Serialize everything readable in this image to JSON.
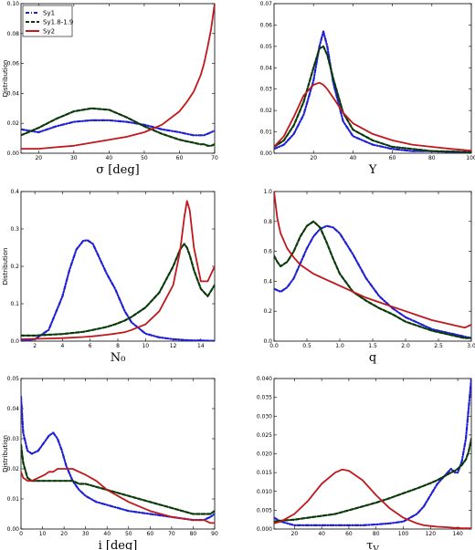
{
  "legend": [
    {
      "name": "Sy1",
      "color": "#1f1fd6",
      "dash": "dashdot"
    },
    {
      "name": "Sy1.8-1.9",
      "color": "#0a3a0a",
      "dash": "dashed"
    },
    {
      "name": "Sy2",
      "color": "#c0181c",
      "dash": "solid"
    }
  ],
  "chart_data": [
    {
      "type": "line",
      "xlabel": "σ [deg]",
      "ylabel": "Distribution",
      "xlim": [
        15,
        70
      ],
      "ylim": [
        0,
        0.1
      ],
      "xticks": [
        "20",
        "30",
        "40",
        "50",
        "60",
        "70"
      ],
      "yticks": [
        "0.00",
        "0.02",
        "0.04",
        "0.06",
        "0.08",
        "0.10"
      ],
      "x": [
        15,
        20,
        25,
        30,
        35,
        40,
        45,
        50,
        55,
        60,
        62,
        64,
        66,
        67,
        68,
        69,
        70
      ],
      "series": [
        {
          "name": "Sy1",
          "values": [
            0.016,
            0.014,
            0.018,
            0.021,
            0.022,
            0.022,
            0.021,
            0.019,
            0.016,
            0.014,
            0.013,
            0.012,
            0.012,
            0.012,
            0.013,
            0.014,
            0.015
          ]
        },
        {
          "name": "Sy1.8-1.9",
          "values": [
            0.012,
            0.017,
            0.023,
            0.028,
            0.03,
            0.029,
            0.024,
            0.018,
            0.013,
            0.009,
            0.008,
            0.007,
            0.006,
            0.006,
            0.005,
            0.005,
            0.006
          ]
        },
        {
          "name": "Sy2",
          "values": [
            0.003,
            0.003,
            0.004,
            0.005,
            0.007,
            0.009,
            0.011,
            0.014,
            0.019,
            0.028,
            0.034,
            0.041,
            0.052,
            0.06,
            0.071,
            0.083,
            0.1
          ]
        }
      ]
    },
    {
      "type": "line",
      "xlabel": "Y",
      "ylabel": "",
      "xlim": [
        0,
        100
      ],
      "ylim": [
        0,
        0.07
      ],
      "xticks": [
        "20",
        "40",
        "60",
        "80",
        "100"
      ],
      "yticks": [
        "0.00",
        "0.01",
        "0.02",
        "0.03",
        "0.04",
        "0.05",
        "0.06",
        "0.07"
      ],
      "x": [
        0,
        5,
        10,
        15,
        20,
        23,
        25,
        27,
        30,
        35,
        40,
        50,
        60,
        70,
        80,
        90,
        100
      ],
      "series": [
        {
          "name": "Sy1",
          "values": [
            0.002,
            0.004,
            0.009,
            0.018,
            0.034,
            0.05,
            0.057,
            0.05,
            0.033,
            0.015,
            0.008,
            0.004,
            0.002,
            0.001,
            0.001,
            0.0005,
            0.0003
          ]
        },
        {
          "name": "Sy1.8-1.9",
          "values": [
            0.003,
            0.006,
            0.013,
            0.024,
            0.04,
            0.049,
            0.05,
            0.046,
            0.035,
            0.019,
            0.011,
            0.006,
            0.003,
            0.002,
            0.001,
            0.0008,
            0.0005
          ]
        },
        {
          "name": "Sy2",
          "values": [
            0.003,
            0.008,
            0.017,
            0.027,
            0.032,
            0.033,
            0.032,
            0.03,
            0.026,
            0.019,
            0.014,
            0.009,
            0.006,
            0.004,
            0.003,
            0.002,
            0.0012
          ]
        }
      ]
    },
    {
      "type": "line",
      "xlabel": "N₀",
      "ylabel": "Distribution",
      "xlim": [
        1,
        15
      ],
      "ylim": [
        0,
        0.4
      ],
      "xticks": [
        "2",
        "4",
        "6",
        "8",
        "10",
        "12",
        "14"
      ],
      "yticks": [
        "0.0",
        "0.1",
        "0.2",
        "0.3",
        "0.4"
      ],
      "x": [
        1,
        2,
        3,
        4,
        4.5,
        5,
        5.5,
        5.8,
        6.2,
        6.7,
        7.2,
        7.8,
        8.5,
        9,
        10,
        11,
        12,
        12.5,
        12.8,
        13,
        13.2,
        13.5,
        14,
        14.5,
        15
      ],
      "series": [
        {
          "name": "Sy1",
          "values": [
            0.001,
            0.005,
            0.03,
            0.12,
            0.19,
            0.245,
            0.268,
            0.27,
            0.26,
            0.22,
            0.18,
            0.14,
            0.08,
            0.05,
            0.02,
            0.01,
            0.005,
            0.004,
            0.003,
            0.003,
            0.002,
            0.002,
            0.002,
            0.001,
            0.001
          ]
        },
        {
          "name": "Sy1.8-1.9",
          "values": [
            0.015,
            0.015,
            0.017,
            0.019,
            0.021,
            0.023,
            0.025,
            0.027,
            0.03,
            0.034,
            0.038,
            0.045,
            0.055,
            0.065,
            0.09,
            0.13,
            0.2,
            0.245,
            0.26,
            0.25,
            0.23,
            0.19,
            0.14,
            0.12,
            0.15
          ]
        },
        {
          "name": "Sy2",
          "values": [
            0.005,
            0.006,
            0.007,
            0.008,
            0.009,
            0.01,
            0.011,
            0.012,
            0.013,
            0.015,
            0.017,
            0.02,
            0.024,
            0.03,
            0.045,
            0.08,
            0.15,
            0.24,
            0.33,
            0.375,
            0.35,
            0.25,
            0.16,
            0.16,
            0.2
          ]
        }
      ]
    },
    {
      "type": "line",
      "xlabel": "q",
      "ylabel": "",
      "xlim": [
        0,
        3
      ],
      "ylim": [
        0,
        1
      ],
      "xticks": [
        "0.0",
        "0.5",
        "1.0",
        "1.5",
        "2.0",
        "2.5",
        "3.0"
      ],
      "yticks": [
        "0.0",
        "0.2",
        "0.4",
        "0.6",
        "0.8",
        "1.0"
      ],
      "x": [
        0,
        0.05,
        0.1,
        0.2,
        0.3,
        0.4,
        0.5,
        0.6,
        0.7,
        0.8,
        0.9,
        1.0,
        1.2,
        1.4,
        1.6,
        1.8,
        2.0,
        2.2,
        2.4,
        2.6,
        2.8,
        2.9,
        3.0
      ],
      "series": [
        {
          "name": "Sy1",
          "values": [
            0.35,
            0.34,
            0.33,
            0.36,
            0.42,
            0.52,
            0.62,
            0.7,
            0.75,
            0.77,
            0.76,
            0.72,
            0.58,
            0.42,
            0.3,
            0.22,
            0.16,
            0.12,
            0.08,
            0.06,
            0.04,
            0.03,
            0.02
          ]
        },
        {
          "name": "Sy1.8-1.9",
          "values": [
            0.57,
            0.53,
            0.5,
            0.53,
            0.6,
            0.7,
            0.77,
            0.8,
            0.76,
            0.66,
            0.55,
            0.45,
            0.33,
            0.27,
            0.22,
            0.18,
            0.13,
            0.1,
            0.07,
            0.05,
            0.03,
            0.02,
            0.02
          ]
        },
        {
          "name": "Sy2",
          "values": [
            1.0,
            0.82,
            0.72,
            0.62,
            0.56,
            0.51,
            0.48,
            0.45,
            0.43,
            0.41,
            0.39,
            0.37,
            0.33,
            0.29,
            0.26,
            0.23,
            0.2,
            0.17,
            0.14,
            0.12,
            0.1,
            0.09,
            0.11
          ]
        }
      ]
    },
    {
      "type": "line",
      "xlabel": "i [deg]",
      "ylabel": "Distribution",
      "xlim": [
        0,
        90
      ],
      "ylim": [
        0,
        0.05
      ],
      "xticks": [
        "0",
        "10",
        "20",
        "30",
        "40",
        "50",
        "60",
        "70",
        "80",
        "90"
      ],
      "yticks": [
        "0.00",
        "0.01",
        "0.02",
        "0.03",
        "0.04",
        "0.05"
      ],
      "x": [
        0,
        1,
        3,
        5,
        8,
        11,
        13,
        15,
        17,
        19,
        21,
        24,
        27,
        30,
        35,
        40,
        50,
        60,
        70,
        80,
        85,
        88,
        90
      ],
      "series": [
        {
          "name": "Sy1",
          "values": [
            0.044,
            0.032,
            0.026,
            0.025,
            0.026,
            0.029,
            0.031,
            0.032,
            0.03,
            0.026,
            0.021,
            0.016,
            0.013,
            0.011,
            0.009,
            0.008,
            0.006,
            0.005,
            0.004,
            0.003,
            0.003,
            0.004,
            0.005
          ]
        },
        {
          "name": "Sy1.8-1.9",
          "values": [
            0.028,
            0.022,
            0.017,
            0.016,
            0.016,
            0.016,
            0.016,
            0.016,
            0.016,
            0.016,
            0.016,
            0.016,
            0.015,
            0.015,
            0.014,
            0.013,
            0.011,
            0.009,
            0.007,
            0.005,
            0.005,
            0.005,
            0.006
          ]
        },
        {
          "name": "Sy2",
          "values": [
            0.019,
            0.017,
            0.016,
            0.016,
            0.017,
            0.018,
            0.019,
            0.019,
            0.02,
            0.02,
            0.02,
            0.02,
            0.019,
            0.018,
            0.016,
            0.013,
            0.009,
            0.006,
            0.004,
            0.003,
            0.003,
            0.002,
            0.002
          ]
        }
      ]
    },
    {
      "type": "line",
      "xlabel": "τ_V",
      "ylabel": "",
      "xlim": [
        5,
        150
      ],
      "ylim": [
        0,
        0.04
      ],
      "xticks": [
        "20",
        "40",
        "60",
        "80",
        "100",
        "120",
        "140"
      ],
      "yticks": [
        "0.000",
        "0.005",
        "0.010",
        "0.015",
        "0.020",
        "0.025",
        "0.030",
        "0.035",
        "0.040"
      ],
      "x": [
        5,
        10,
        20,
        30,
        40,
        50,
        55,
        60,
        70,
        80,
        90,
        100,
        110,
        115,
        120,
        125,
        130,
        135,
        138,
        140,
        143,
        146,
        148,
        150
      ],
      "series": [
        {
          "name": "Sy1",
          "values": [
            0.003,
            0.002,
            0.001,
            0.001,
            0.001,
            0.001,
            0.001,
            0.001,
            0.001,
            0.0012,
            0.0015,
            0.002,
            0.004,
            0.006,
            0.009,
            0.012,
            0.014,
            0.016,
            0.015,
            0.015,
            0.018,
            0.024,
            0.032,
            0.04
          ]
        },
        {
          "name": "Sy1.8-1.9",
          "values": [
            0.002,
            0.0022,
            0.0025,
            0.003,
            0.0035,
            0.004,
            0.0045,
            0.005,
            0.006,
            0.007,
            0.0082,
            0.0095,
            0.0108,
            0.0115,
            0.0122,
            0.013,
            0.014,
            0.015,
            0.0155,
            0.016,
            0.017,
            0.0185,
            0.0205,
            0.024
          ]
        },
        {
          "name": "Sy2",
          "values": [
            0.0015,
            0.002,
            0.004,
            0.0075,
            0.012,
            0.015,
            0.0158,
            0.0155,
            0.013,
            0.009,
            0.0055,
            0.003,
            0.0015,
            0.001,
            0.0008,
            0.0006,
            0.0005,
            0.0004,
            0.0003,
            0.0003,
            0.0002,
            0.0002,
            0.0002,
            0.0002
          ]
        }
      ]
    }
  ]
}
